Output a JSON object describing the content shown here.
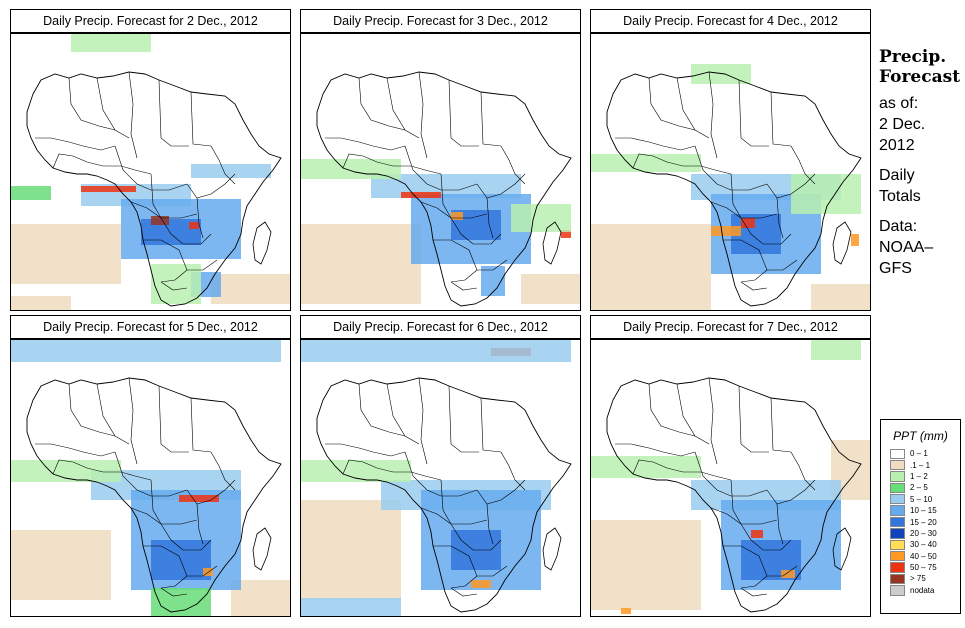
{
  "panels": [
    {
      "title": "Daily Precip. Forecast for  2 Dec., 2012"
    },
    {
      "title": "Daily Precip. Forecast for  3 Dec., 2012"
    },
    {
      "title": "Daily Precip. Forecast for  4 Dec., 2012"
    },
    {
      "title": "Daily Precip. Forecast for  5 Dec., 2012"
    },
    {
      "title": "Daily Precip. Forecast for  6 Dec., 2012"
    },
    {
      "title": "Daily Precip. Forecast for  7 Dec., 2012"
    }
  ],
  "sidebar": {
    "heading1": "Precip.",
    "heading2": "Forecast",
    "as_of": "as of:",
    "date1": "2 Dec.",
    "date2": "2012",
    "daily": "Daily",
    "totals": "Totals",
    "data_label": "Data:",
    "source1": "NOAA–",
    "source2": "GFS"
  },
  "legend": {
    "title": "PPT (mm)",
    "items": [
      {
        "label": "0 – 1",
        "color": "#ffffff"
      },
      {
        "label": ".1 – 1",
        "color": "#f0dcc0"
      },
      {
        "label": "1 – 2",
        "color": "#b8f0b0"
      },
      {
        "label": "2 – 5",
        "color": "#66dd77"
      },
      {
        "label": "5 – 10",
        "color": "#99ccee"
      },
      {
        "label": "10 – 15",
        "color": "#66aaee"
      },
      {
        "label": "15 – 20",
        "color": "#3377dd"
      },
      {
        "label": "20 – 30",
        "color": "#1144bb"
      },
      {
        "label": "30 – 40",
        "color": "#ffdd55"
      },
      {
        "label": "40 – 50",
        "color": "#ff9922"
      },
      {
        "label": "50 – 75",
        "color": "#ee3311"
      },
      {
        "label": "> 75",
        "color": "#993322"
      },
      {
        "label": "nodata",
        "color": "#cccccc"
      }
    ]
  }
}
